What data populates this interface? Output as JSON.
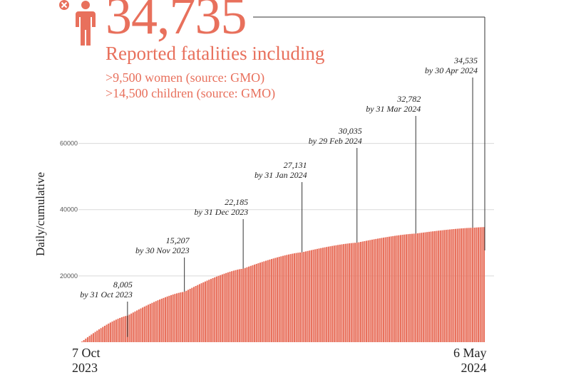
{
  "headline": {
    "total": "34,735",
    "subtitle": "Reported fatalities including",
    "line1": ">9,500 women (source: GMO)",
    "line2": ">14,500 children (source: GMO)"
  },
  "icons": {
    "person": "person-icon",
    "close": "close-icon"
  },
  "colors": {
    "accent": "#e8705c",
    "bar": "#e8705c",
    "text": "#222222",
    "grid": "#d9d9d9"
  },
  "chart_data": {
    "type": "bar",
    "title": "",
    "ylabel": "Daily/cumulative",
    "ylim": [
      0,
      70000
    ],
    "yticks": [
      "20000",
      "40000",
      "60000"
    ],
    "x_start": "2023-10-07",
    "x_end": "2024-05-06",
    "x_start_label": [
      "7 Oct",
      "2023"
    ],
    "x_end_label": [
      "6 May",
      "2024"
    ],
    "cumulative_checkpoints": [
      {
        "date": "2023-10-07",
        "value": 200
      },
      {
        "date": "2023-10-31",
        "value": 8005
      },
      {
        "date": "2023-11-30",
        "value": 15207
      },
      {
        "date": "2023-12-31",
        "value": 22185
      },
      {
        "date": "2024-01-31",
        "value": 27131
      },
      {
        "date": "2024-02-29",
        "value": 30035
      },
      {
        "date": "2024-03-31",
        "value": 32782
      },
      {
        "date": "2024-04-30",
        "value": 34535
      },
      {
        "date": "2024-05-06",
        "value": 34735
      }
    ],
    "annotations": [
      {
        "date": "2023-10-31",
        "value_label": "8,005",
        "date_label": "by 31 Oct 2023"
      },
      {
        "date": "2023-11-30",
        "value_label": "15,207",
        "date_label": "by 30 Nov 2023"
      },
      {
        "date": "2023-12-31",
        "value_label": "22,185",
        "date_label": "by 31 Dec 2023"
      },
      {
        "date": "2024-01-31",
        "value_label": "27,131",
        "date_label": "by 31 Jan 2024"
      },
      {
        "date": "2024-02-29",
        "value_label": "30,035",
        "date_label": "by 29 Feb 2024"
      },
      {
        "date": "2024-03-31",
        "value_label": "32,782",
        "date_label": "by 31 Mar 2024"
      },
      {
        "date": "2024-04-30",
        "value_label": "34,535",
        "date_label": "by 30 Apr 2024"
      }
    ],
    "grid": true
  }
}
